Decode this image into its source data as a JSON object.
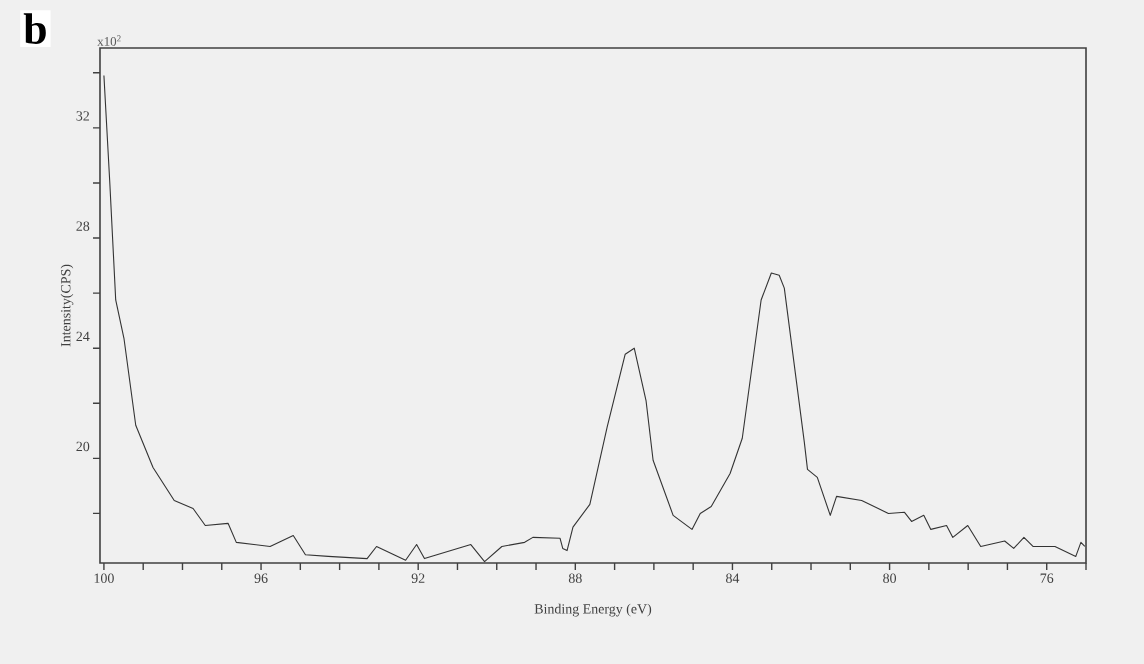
{
  "chart_data": {
    "type": "line",
    "xlabel": "Binding Energy (eV)",
    "ylabel": "Intensity(CPS)",
    "annotations": [
      "b",
      "x10$^{2}$"
    ],
    "color": "#333333",
    "x": [
      100.0,
      99.85,
      99.7,
      99.49,
      99.19,
      98.75,
      98.21,
      97.73,
      97.42,
      96.84,
      96.63,
      95.77,
      95.18,
      94.87,
      94.29,
      93.3,
      93.06,
      92.32,
      92.04,
      91.84,
      90.66,
      90.31,
      89.87,
      89.29,
      89.08,
      88.39,
      88.32,
      88.21,
      88.06,
      87.63,
      87.19,
      86.73,
      86.5,
      86.2,
      86.02,
      85.51,
      85.03,
      84.82,
      84.54,
      84.06,
      83.75,
      83.27,
      83.01,
      82.81,
      82.68,
      82.17,
      82.09,
      81.84,
      81.51,
      81.35,
      80.71,
      80.03,
      79.62,
      79.44,
      79.13,
      78.95,
      78.55,
      78.39,
      78.01,
      77.68,
      77.07,
      76.84,
      76.58,
      76.35,
      75.79,
      75.26,
      75.13,
      75.03
    ],
    "values": [
      33.9,
      30.0,
      25.75,
      24.36,
      21.2,
      19.67,
      18.47,
      18.18,
      17.56,
      17.64,
      16.95,
      16.8,
      17.2,
      16.5,
      16.44,
      16.36,
      16.8,
      16.3,
      16.87,
      16.36,
      16.87,
      16.25,
      16.8,
      16.95,
      17.13,
      17.1,
      16.73,
      16.65,
      17.5,
      18.33,
      21.13,
      23.78,
      24.0,
      22.1,
      19.93,
      17.93,
      17.42,
      18.0,
      18.25,
      19.45,
      20.73,
      25.75,
      26.73,
      26.65,
      26.18,
      20.58,
      19.6,
      19.31,
      17.93,
      18.62,
      18.47,
      18.0,
      18.04,
      17.71,
      17.93,
      17.42,
      17.56,
      17.13,
      17.56,
      16.8,
      17.0,
      16.73,
      17.13,
      16.8,
      16.8,
      16.44,
      16.95,
      16.8
    ],
    "xlim": [
      100.1,
      75
    ],
    "ylim": [
      16.2,
      34.9
    ],
    "xticks": [
      100,
      {
        "value": 99,
        "label": null
      },
      {
        "value": 98,
        "label": null
      },
      {
        "value": 97,
        "label": null
      },
      96,
      {
        "value": 95,
        "label": null
      },
      {
        "value": 94,
        "label": null
      },
      {
        "value": 93,
        "label": null
      },
      92,
      {
        "value": 91,
        "label": null
      },
      {
        "value": 90,
        "label": null
      },
      {
        "value": 89,
        "label": null
      },
      88,
      {
        "value": 87,
        "label": null
      },
      {
        "value": 86,
        "label": null
      },
      {
        "value": 85,
        "label": null
      },
      84,
      {
        "value": 83,
        "label": null
      },
      {
        "value": 82,
        "label": null
      },
      {
        "value": 81,
        "label": null
      },
      80,
      {
        "value": 79,
        "label": null
      },
      {
        "value": 78,
        "label": null
      },
      {
        "value": 77,
        "label": null
      },
      76,
      {
        "value": 75,
        "label": null
      }
    ],
    "yticks": [
      {
        "value": 18,
        "label": null
      },
      20,
      {
        "value": 22,
        "label": null
      },
      24,
      {
        "value": 26,
        "label": null
      },
      28,
      {
        "value": 30,
        "label": null
      },
      32,
      {
        "value": 34,
        "label": null
      }
    ]
  }
}
